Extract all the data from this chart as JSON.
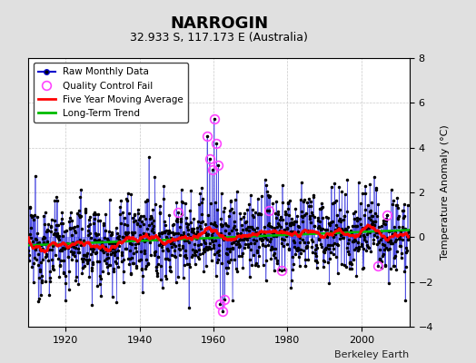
{
  "title": "NARROGIN",
  "subtitle": "32.933 S, 117.173 E (Australia)",
  "ylabel": "Temperature Anomaly (°C)",
  "credit": "Berkeley Earth",
  "ylim": [
    -4,
    8
  ],
  "yticks": [
    -4,
    -2,
    0,
    2,
    4,
    6,
    8
  ],
  "xlim": [
    1910,
    2013
  ],
  "xticks": [
    1920,
    1940,
    1960,
    1980,
    2000
  ],
  "start_year": 1910.0,
  "n_years": 103,
  "fig_bg": "#e0e0e0",
  "plot_bg": "#ffffff",
  "stem_color": "#8888ff",
  "line_color": "#0000cc",
  "dot_color": "#000000",
  "qc_color": "#ff44ff",
  "ma_color": "#ff0000",
  "trend_color": "#00bb00",
  "title_fontsize": 13,
  "subtitle_fontsize": 9,
  "ylabel_fontsize": 8,
  "tick_fontsize": 8,
  "legend_fontsize": 7.5,
  "credit_fontsize": 8
}
